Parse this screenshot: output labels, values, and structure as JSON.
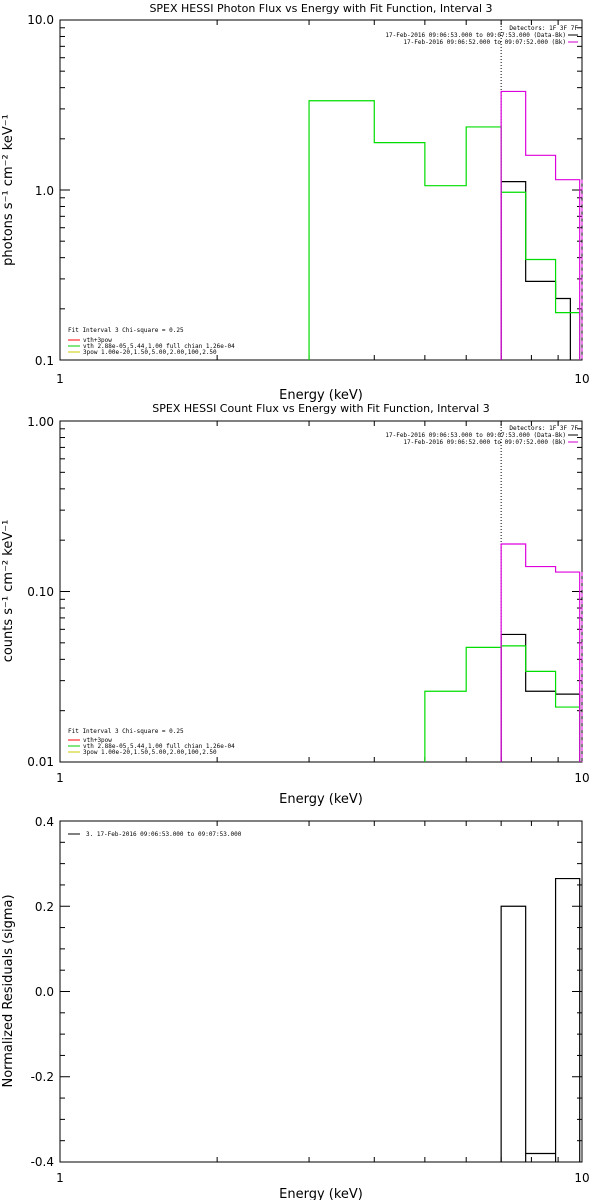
{
  "chart_data": [
    {
      "type": "line",
      "title": "SPEX HESSI Photon Flux vs Energy with Fit Function, Interval 3",
      "xlabel": "Energy (keV)",
      "ylabel": "photons s⁻¹ cm⁻² keV⁻¹",
      "xscale": "log",
      "yscale": "log",
      "xlim": [
        1,
        10
      ],
      "ylim": [
        0.1,
        10
      ],
      "x_ticks": [
        "1",
        "10"
      ],
      "y_ticks": [
        "0.1",
        "1.0",
        "10.0"
      ],
      "vline_keV": 7.0,
      "header": {
        "detectors": "Detectors: 1F 3F 7F",
        "lines": [
          {
            "text": "17-Feb-2016 09:06:53.000 to 09:07:53.000 (Data-Bk)",
            "color": "#000000"
          },
          {
            "text": "17-Feb-2016 09:06:52.000 to 09:07:52.000 (Bk)",
            "color": "#cc00cc"
          }
        ]
      },
      "legend": {
        "placement": "bottom-left",
        "title": "Fit Interval 3   Chi-square = 0.25",
        "entries": [
          {
            "text": "vth+3pow",
            "color": "#ff0000"
          },
          {
            "text": "vth 2.88e-05,5.44,1.00  full chian 1.26e-04",
            "color": "#00cc00"
          },
          {
            "text": "3pow 1.00e-20,1.50,5.00,2.00,100,2.50",
            "color": "#cccc00"
          }
        ]
      },
      "series": [
        {
          "name": "",
          "color": "#000000",
          "steps": [
            [
              7.0,
              7.8,
              1.12
            ],
            [
              7.8,
              8.9,
              0.29
            ],
            [
              8.9,
              9.5,
              0.23
            ]
          ]
        },
        {
          "name": "",
          "color": "#00dd00",
          "steps": [
            [
              3.0,
              4.0,
              3.35
            ],
            [
              4.0,
              5.0,
              1.9
            ],
            [
              5.0,
              6.0,
              1.06
            ],
            [
              6.0,
              7.0,
              2.35
            ],
            [
              7.0,
              7.8,
              0.97
            ],
            [
              7.8,
              8.9,
              0.39
            ],
            [
              8.9,
              9.9,
              0.19
            ]
          ]
        },
        {
          "name": "Bk",
          "color": "#dd00dd",
          "steps": [
            [
              7.0,
              7.8,
              3.8
            ],
            [
              7.8,
              8.9,
              1.6
            ],
            [
              8.9,
              9.9,
              1.15
            ]
          ]
        }
      ]
    },
    {
      "type": "line",
      "title": "SPEX HESSI Count Flux vs Energy with Fit Function, Interval 3",
      "xlabel": "Energy (keV)",
      "ylabel": "counts s⁻¹ cm⁻² keV⁻¹",
      "xscale": "log",
      "yscale": "log",
      "xlim": [
        1,
        10
      ],
      "ylim": [
        0.01,
        1
      ],
      "x_ticks": [
        "1",
        "10"
      ],
      "y_ticks": [
        "0.01",
        "0.10",
        "1.00"
      ],
      "vline_keV": 7.0,
      "header": {
        "detectors": "Detectors: 1F 3F 7F",
        "lines": [
          {
            "text": "17-Feb-2016 09:06:53.000 to 09:07:53.000 (Data-Bk)",
            "color": "#000000"
          },
          {
            "text": "17-Feb-2016 09:06:52.000 to 09:07:52.000 (Bk)",
            "color": "#cc00cc"
          }
        ]
      },
      "legend": {
        "placement": "bottom-left",
        "title": "Fit Interval 3   Chi-square = 0.25",
        "entries": [
          {
            "text": "vth+3pow",
            "color": "#ff0000"
          },
          {
            "text": "vth 2.88e-05,5.44,1.00  full chian 1.26e-04",
            "color": "#00cc00"
          },
          {
            "text": "3pow 1.00e-20,1.50,5.00,2.00,100,2.50",
            "color": "#cccc00"
          }
        ]
      },
      "series": [
        {
          "name": "",
          "color": "#000000",
          "steps": [
            [
              7.0,
              7.8,
              0.056
            ],
            [
              7.8,
              8.9,
              0.026
            ],
            [
              8.9,
              9.9,
              0.025
            ]
          ]
        },
        {
          "name": "",
          "color": "#00dd00",
          "steps": [
            [
              5.0,
              6.0,
              0.026
            ],
            [
              6.0,
              7.0,
              0.047
            ],
            [
              7.0,
              7.8,
              0.048
            ],
            [
              7.8,
              8.9,
              0.034
            ],
            [
              8.9,
              9.9,
              0.021
            ]
          ]
        },
        {
          "name": "Bk",
          "color": "#dd00dd",
          "steps": [
            [
              7.0,
              7.8,
              0.19
            ],
            [
              7.8,
              8.9,
              0.14
            ],
            [
              8.9,
              9.9,
              0.13
            ]
          ]
        }
      ]
    },
    {
      "type": "bar",
      "title": "",
      "xlabel": "Energy (keV)",
      "ylabel": "Normalized Residuals (sigma)",
      "xscale": "log",
      "yscale": "linear",
      "xlim": [
        1,
        10
      ],
      "ylim": [
        -0.4,
        0.4
      ],
      "x_ticks": [
        "1",
        "10"
      ],
      "y_ticks": [
        "-0.4",
        "-0.2",
        "0.0",
        "0.2",
        "0.4"
      ],
      "legend": {
        "placement": "top-left",
        "entries": [
          {
            "text": "3. 17-Feb-2016 09:06:53.000 to 09:07:53.000",
            "color": "#000000"
          }
        ]
      },
      "series": [
        {
          "name": "",
          "color": "#000000",
          "steps": [
            [
              7.0,
              7.8,
              0.2
            ],
            [
              7.8,
              8.9,
              -0.38
            ],
            [
              8.9,
              9.9,
              0.265
            ]
          ]
        }
      ]
    }
  ]
}
